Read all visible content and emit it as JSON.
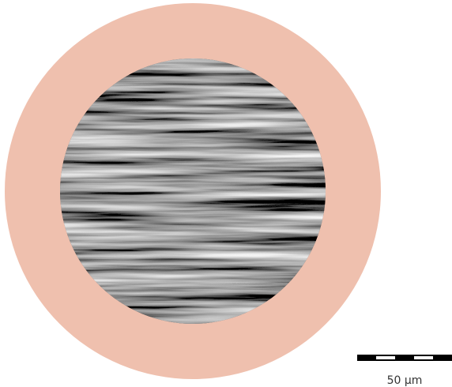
{
  "scale_bar": {
    "label": "50 μm"
  }
}
